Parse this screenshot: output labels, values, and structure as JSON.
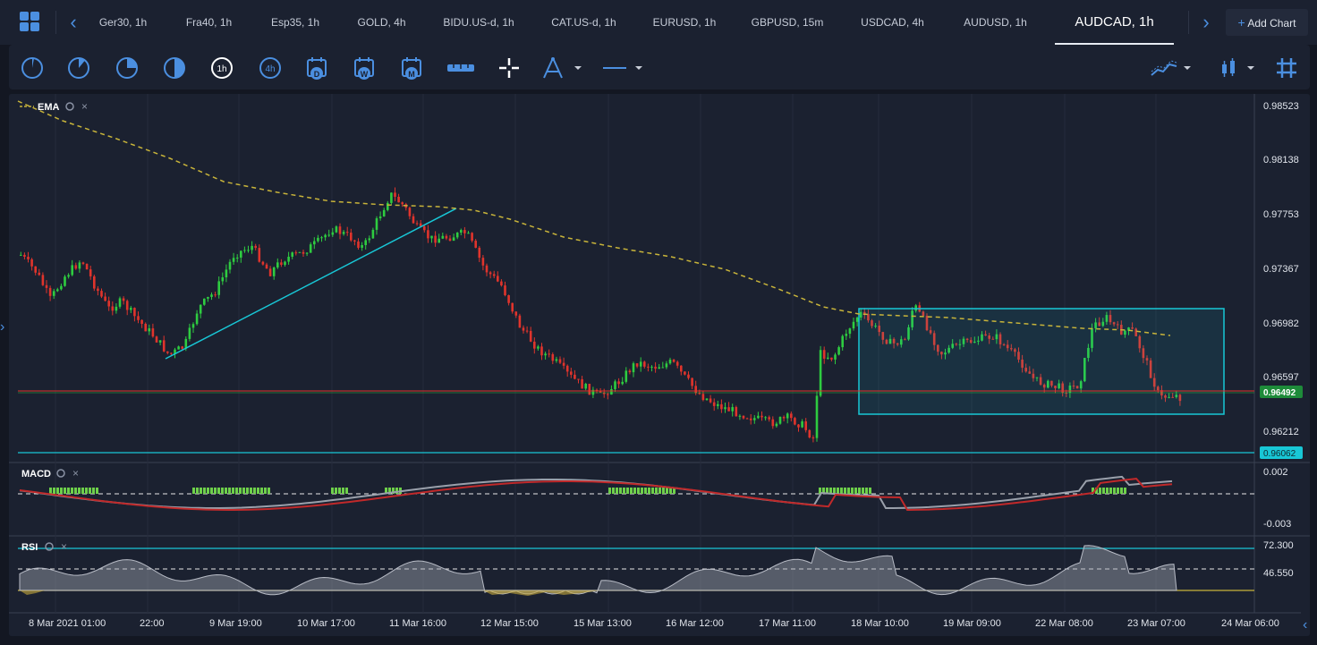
{
  "tabs": [
    {
      "label": "Ger30, 1h",
      "active": false
    },
    {
      "label": "Fra40, 1h",
      "active": false
    },
    {
      "label": "Esp35, 1h",
      "active": false
    },
    {
      "label": "GOLD, 4h",
      "active": false
    },
    {
      "label": "BIDU.US-d, 1h",
      "active": false
    },
    {
      "label": "CAT.US-d, 1h",
      "active": false
    },
    {
      "label": "EURUSD, 1h",
      "active": false
    },
    {
      "label": "GBPUSD, 15m",
      "active": false
    },
    {
      "label": "USDCAD, 4h",
      "active": false
    },
    {
      "label": "AUDUSD, 1h",
      "active": false
    },
    {
      "label": "AUDCAD, 1h",
      "active": true
    }
  ],
  "add_chart": {
    "icon": "+",
    "label": "Add Chart"
  },
  "toolbar": {
    "timeframes": [
      "1h"
    ],
    "timeframe_icons": [
      "4h",
      "D",
      "W",
      "M"
    ]
  },
  "indicators": {
    "ema": "EMA",
    "macd": "MACD",
    "rsi": "RSI"
  },
  "price_axis": [
    "0.98523",
    "0.98138",
    "0.97753",
    "0.97367",
    "0.96982",
    "0.96597",
    "0.96212"
  ],
  "current_price": "0.96492",
  "line_price": "0.96062",
  "macd_axis": [
    "0.002",
    "-0.003"
  ],
  "rsi_axis": [
    "72.300",
    "46.550"
  ],
  "dates": [
    "8 Mar 2021 01:00",
    "22:00",
    "9 Mar 19:00",
    "10 Mar 17:00",
    "11 Mar 16:00",
    "12 Mar 15:00",
    "15 Mar 13:00",
    "16 Mar 12:00",
    "17 Mar 11:00",
    "18 Mar 10:00",
    "19 Mar 09:00",
    "22 Mar 08:00",
    "23 Mar 07:00",
    "24 Mar 06:00"
  ],
  "colors": {
    "accent": "#4b8fe0",
    "up": "#2ecc40",
    "down": "#e0342c",
    "ema": "#c8b43a",
    "cyan": "#18c7d6",
    "price_tag": "#1e8b3a"
  }
}
